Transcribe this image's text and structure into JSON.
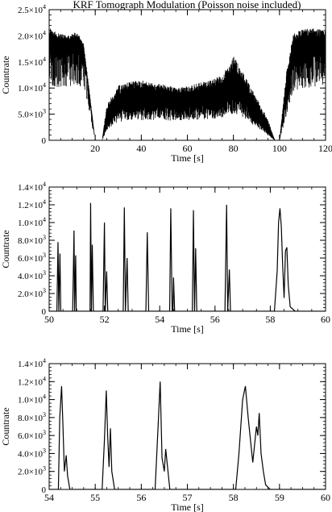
{
  "figure_title": "KRF Tomograph Modulation (Poisson noise included)",
  "chart_data": [
    {
      "type": "line",
      "title": "KRF Tomograph Modulation (Poisson noise included)",
      "xlabel": "Time [s]",
      "ylabel": "Countrate",
      "xlim": [
        0,
        120
      ],
      "ylim": [
        0,
        25000
      ],
      "x_ticks": [
        "20",
        "40",
        "60",
        "80",
        "100",
        "120"
      ],
      "y_ticks": [
        {
          "mantissa": "0",
          "exp": ""
        },
        {
          "mantissa": "5.0×10",
          "exp": "3"
        },
        {
          "mantissa": "1.0×10",
          "exp": "4"
        },
        {
          "mantissa": "1.5×10",
          "exp": "4"
        },
        {
          "mantissa": "2.0×10",
          "exp": "4"
        },
        {
          "mantissa": "2.5×10",
          "exp": "4"
        }
      ],
      "grid": false,
      "series": [
        {
          "style": "dense",
          "x": [
            0,
            4,
            8,
            12,
            15,
            20,
            23,
            25,
            30,
            35,
            40,
            45,
            50,
            55,
            60,
            65,
            70,
            75,
            78,
            80,
            83,
            86,
            90,
            95,
            98,
            100,
            103,
            106,
            110,
            115,
            120
          ],
          "y_low": [
            16500,
            17000,
            17200,
            17500,
            16500,
            0,
            0,
            3200,
            5800,
            6200,
            6300,
            6500,
            6400,
            6200,
            6300,
            6600,
            6800,
            7200,
            8000,
            8500,
            7800,
            6500,
            4000,
            1500,
            0,
            0,
            8000,
            15500,
            16500,
            17000,
            17500
          ],
          "y_high": [
            21500,
            20500,
            20000,
            20800,
            18500,
            0,
            0,
            6800,
            10500,
            11300,
            11500,
            11000,
            10800,
            10000,
            10400,
            11000,
            11500,
            12500,
            14500,
            16200,
            14000,
            11500,
            8200,
            4000,
            0,
            0,
            13000,
            20500,
            21200,
            21500,
            21000
          ]
        }
      ]
    },
    {
      "type": "line",
      "xlabel": "Time [s]",
      "ylabel": "Countrate",
      "xlim": [
        50,
        60
      ],
      "ylim": [
        0,
        14000
      ],
      "x_ticks": [
        "50",
        "52",
        "54",
        "56",
        "58",
        "60"
      ],
      "y_ticks": [
        {
          "mantissa": "0",
          "exp": ""
        },
        {
          "mantissa": "2.0×10",
          "exp": "3"
        },
        {
          "mantissa": "4.0×10",
          "exp": "3"
        },
        {
          "mantissa": "6.0×10",
          "exp": "3"
        },
        {
          "mantissa": "8.0×10",
          "exp": "3"
        },
        {
          "mantissa": "1.0×10",
          "exp": "4"
        },
        {
          "mantissa": "1.2×10",
          "exp": "4"
        },
        {
          "mantissa": "1.4×10",
          "exp": "4"
        }
      ],
      "grid": false,
      "series": [
        {
          "style": "line",
          "x": [
            50.0,
            50.28,
            50.32,
            50.35,
            50.39,
            50.42,
            50.45,
            50.48,
            50.7,
            50.85,
            50.9,
            50.92,
            50.96,
            50.98,
            51.42,
            51.48,
            51.5,
            51.53,
            51.56,
            51.6,
            51.95,
            52.0,
            52.03,
            52.08,
            52.12,
            52.15,
            52.6,
            52.68,
            52.72,
            52.76,
            52.82,
            52.86,
            52.9,
            53.4,
            53.5,
            53.55,
            53.6,
            53.65,
            54.3,
            54.36,
            54.4,
            54.45,
            54.48,
            54.5,
            54.54,
            54.58,
            54.6,
            55.1,
            55.18,
            55.22,
            55.26,
            55.3,
            55.34,
            55.36,
            56.3,
            56.36,
            56.42,
            56.46,
            56.52,
            56.56,
            56.6,
            58.15,
            58.25,
            58.3,
            58.35,
            58.4,
            58.45,
            58.5,
            58.55,
            58.6,
            58.65,
            58.72,
            58.9,
            60.0
          ],
          "y": [
            0,
            0,
            7800,
            0,
            6500,
            0,
            0,
            0,
            0,
            0,
            9100,
            0,
            6300,
            0,
            0,
            0,
            12200,
            0,
            7500,
            0,
            0,
            10000,
            0,
            4500,
            0,
            0,
            0,
            0,
            11700,
            0,
            6000,
            0,
            0,
            0,
            0,
            8900,
            0,
            0,
            0,
            0,
            11600,
            0,
            0,
            3800,
            0,
            0,
            0,
            0,
            0,
            11400,
            0,
            7100,
            0,
            0,
            0,
            0,
            12000,
            0,
            4700,
            0,
            0,
            0,
            4500,
            10000,
            11600,
            9500,
            5000,
            1500,
            6800,
            7200,
            3000,
            500,
            0,
            0
          ]
        }
      ]
    },
    {
      "type": "line",
      "xlabel": "Time [s]",
      "ylabel": "Countrate",
      "xlim": [
        54,
        60
      ],
      "ylim": [
        0,
        14000
      ],
      "x_ticks": [
        "54",
        "55",
        "56",
        "57",
        "58",
        "59",
        "60"
      ],
      "y_ticks": [
        {
          "mantissa": "0",
          "exp": ""
        },
        {
          "mantissa": "2.0×10",
          "exp": "3"
        },
        {
          "mantissa": "4.0×10",
          "exp": "3"
        },
        {
          "mantissa": "6.0×10",
          "exp": "3"
        },
        {
          "mantissa": "8.0×10",
          "exp": "3"
        },
        {
          "mantissa": "1.0×10",
          "exp": "4"
        },
        {
          "mantissa": "1.2×10",
          "exp": "4"
        },
        {
          "mantissa": "1.4×10",
          "exp": "4"
        }
      ],
      "grid": false,
      "series": [
        {
          "style": "line",
          "x": [
            54.0,
            54.2,
            54.23,
            54.27,
            54.3,
            54.33,
            54.37,
            54.4,
            54.45,
            55.15,
            55.2,
            55.24,
            55.27,
            55.3,
            55.33,
            55.36,
            55.42,
            56.3,
            56.36,
            56.41,
            56.45,
            56.5,
            56.53,
            56.57,
            56.62,
            58.05,
            58.12,
            58.2,
            58.26,
            58.32,
            58.38,
            58.42,
            58.47,
            58.5,
            58.53,
            58.56,
            58.6,
            58.65,
            58.7,
            58.8,
            60.0
          ],
          "y": [
            0,
            0,
            8000,
            11500,
            7000,
            2000,
            3800,
            1500,
            0,
            0,
            5500,
            11000,
            6000,
            2500,
            6800,
            2000,
            0,
            0,
            6500,
            12000,
            3500,
            2000,
            4500,
            2500,
            0,
            0,
            4000,
            10000,
            11500,
            8000,
            5000,
            3000,
            5500,
            7000,
            6000,
            8500,
            4000,
            2000,
            500,
            0,
            0
          ]
        }
      ]
    }
  ]
}
